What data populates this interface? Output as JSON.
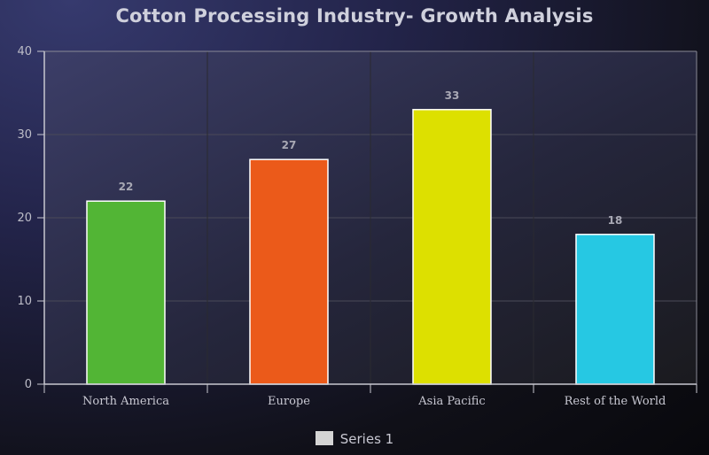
{
  "chart_data": {
    "type": "bar",
    "title": "Cotton Processing Industry- Growth Analysis",
    "categories": [
      "North America",
      "Europe",
      "Asia Pacific",
      "Rest of the World"
    ],
    "series": [
      {
        "name": "Series 1",
        "values": [
          22,
          27,
          33,
          18
        ],
        "colors": [
          "#52b535",
          "#eb5a1a",
          "#dde000",
          "#26c8e3"
        ]
      }
    ],
    "ylim": [
      0,
      40
    ],
    "yticks": [
      0,
      10,
      20,
      30,
      40
    ],
    "data_labels": [
      "22",
      "27",
      "33",
      "18"
    ],
    "grid": true,
    "legend_position": "bottom-center"
  }
}
